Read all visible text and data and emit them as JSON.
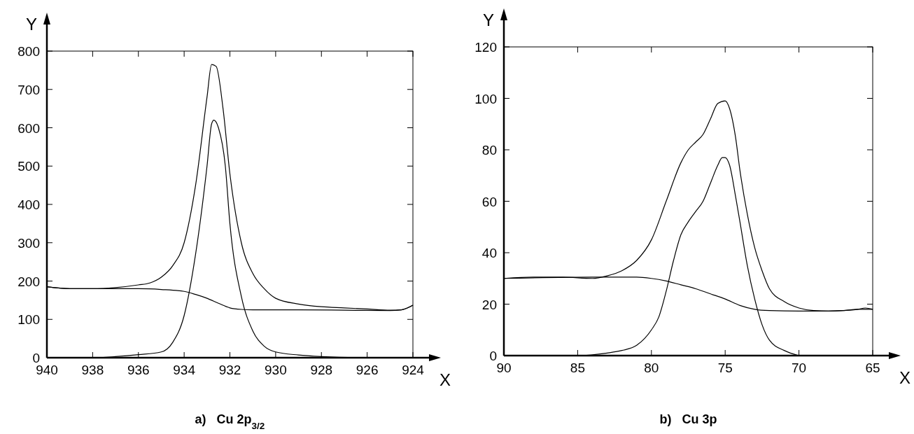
{
  "chart_data": [
    {
      "type": "line",
      "title": "a)   Cu 2p$_{3/2}$",
      "xlabel": "X",
      "ylabel": "Y",
      "xlim": [
        940,
        924
      ],
      "xticks": [
        940,
        938,
        936,
        934,
        932,
        930,
        928,
        926,
        924
      ],
      "ylim": [
        0,
        800
      ],
      "yticks": [
        0,
        100,
        200,
        300,
        400,
        500,
        600,
        700,
        800
      ],
      "grid": false,
      "marker": "none",
      "line_style": "solid",
      "series": [
        {
          "color": "#000000",
          "x": [
            940,
            939,
            938,
            937,
            936,
            935.5,
            935,
            934.5,
            934,
            933.5,
            933,
            932.8,
            932.6,
            932.3,
            932,
            931.5,
            931,
            930.5,
            930,
            929,
            928,
            927,
            926,
            925,
            924.5,
            924
          ],
          "values": [
            185,
            180,
            180,
            183,
            190,
            195,
            210,
            240,
            300,
            450,
            680,
            765,
            760,
            650,
            480,
            300,
            220,
            180,
            155,
            140,
            133,
            130,
            127,
            124,
            125,
            137
          ]
        },
        {
          "color": "#000000",
          "x": [
            940,
            939,
            938,
            936,
            935,
            934,
            933.5,
            933,
            932.5,
            932,
            931.5,
            931,
            929,
            927,
            925,
            924.5,
            924
          ],
          "values": [
            185,
            180,
            180,
            180,
            178,
            173,
            165,
            155,
            142,
            130,
            126,
            125,
            125,
            124,
            123,
            125,
            137
          ]
        },
        {
          "color": "#000000",
          "x": [
            940,
            938,
            937,
            936,
            935,
            934.5,
            934,
            933.5,
            933,
            932.8,
            932.7,
            932.5,
            932.2,
            932,
            931.5,
            931,
            930.5,
            930,
            929,
            928,
            926,
            924
          ],
          "values": [
            0,
            0,
            3,
            8,
            15,
            40,
            110,
            270,
            500,
            610,
            620,
            600,
            500,
            350,
            160,
            70,
            30,
            15,
            7,
            3,
            0,
            0
          ]
        }
      ]
    },
    {
      "type": "line",
      "title": "b)   Cu 3p",
      "xlabel": "X",
      "ylabel": "Y",
      "xlim": [
        90,
        65
      ],
      "xticks": [
        90,
        85,
        80,
        75,
        70,
        65
      ],
      "ylim": [
        0,
        120
      ],
      "yticks": [
        0,
        20,
        40,
        60,
        80,
        100,
        120
      ],
      "grid": false,
      "marker": "none",
      "line_style": "solid",
      "series": [
        {
          "color": "#000000",
          "x": [
            90,
            88,
            86,
            84,
            83,
            82,
            81,
            80,
            79,
            78,
            77.5,
            77,
            76.5,
            76,
            75.5,
            75,
            74.7,
            74.3,
            74,
            73.5,
            73,
            72.5,
            72,
            71,
            70,
            69,
            68,
            67,
            66,
            65.5,
            65
          ],
          "values": [
            30,
            30.5,
            30.5,
            30,
            31,
            33,
            37,
            45,
            60,
            75,
            80,
            83,
            86,
            92,
            98,
            99,
            96,
            85,
            72,
            55,
            42,
            33,
            26,
            21,
            18.5,
            17.5,
            17.3,
            17.5,
            18,
            18.5,
            18
          ]
        },
        {
          "color": "#000000",
          "x": [
            90,
            84,
            81,
            80,
            79,
            78,
            77,
            76,
            75,
            74,
            73,
            72,
            70,
            68,
            67,
            66,
            65
          ],
          "values": [
            30,
            30.5,
            30.5,
            30,
            29,
            27.5,
            26,
            24,
            22,
            19.5,
            18,
            17.5,
            17.3,
            17.3,
            17.5,
            18,
            18
          ]
        },
        {
          "color": "#000000",
          "x": [
            90,
            85,
            83,
            82,
            81,
            80,
            79.5,
            79,
            78.5,
            78,
            77.5,
            77,
            76.5,
            76,
            75.5,
            75.2,
            75,
            74.7,
            74.3,
            74,
            73.5,
            73,
            72.5,
            72,
            71,
            70
          ],
          "values": [
            0,
            0,
            1,
            2,
            4,
            10,
            15,
            25,
            37,
            47,
            52,
            56,
            60,
            67,
            74,
            77,
            77,
            74,
            62,
            52,
            35,
            22,
            12,
            6,
            2,
            0
          ]
        }
      ]
    }
  ]
}
